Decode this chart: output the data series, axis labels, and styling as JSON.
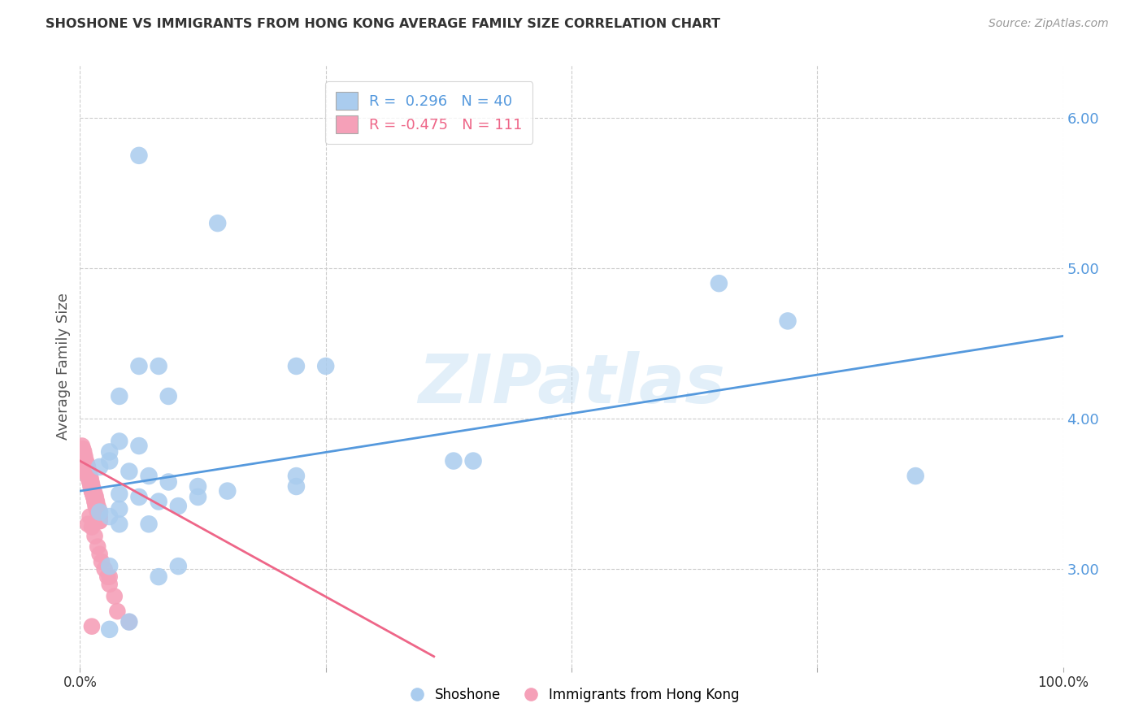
{
  "title": "SHOSHONE VS IMMIGRANTS FROM HONG KONG AVERAGE FAMILY SIZE CORRELATION CHART",
  "source": "Source: ZipAtlas.com",
  "ylabel": "Average Family Size",
  "xlim": [
    0,
    1.0
  ],
  "ylim": [
    2.35,
    6.35
  ],
  "yticks": [
    3.0,
    4.0,
    5.0,
    6.0
  ],
  "background_color": "#ffffff",
  "grid_color": "#cccccc",
  "shoshone_color": "#aaccee",
  "hk_color": "#f5a0b8",
  "hk_fill_color": "#f06080",
  "shoshone_line_color": "#5599dd",
  "hk_line_color": "#ee6688",
  "watermark": "ZIPatlas",
  "shoshone_x": [
    0.06,
    0.14,
    0.22,
    0.25,
    0.06,
    0.08,
    0.04,
    0.09,
    0.04,
    0.06,
    0.03,
    0.03,
    0.02,
    0.05,
    0.07,
    0.09,
    0.12,
    0.15,
    0.04,
    0.06,
    0.08,
    0.1,
    0.04,
    0.02,
    0.03,
    0.65,
    0.72,
    0.85,
    0.4,
    0.38,
    0.22,
    0.12,
    0.07,
    0.04,
    0.03,
    0.22,
    0.1,
    0.08,
    0.05,
    0.03
  ],
  "shoshone_y": [
    5.75,
    5.3,
    4.35,
    4.35,
    4.35,
    4.35,
    4.15,
    4.15,
    3.85,
    3.82,
    3.78,
    3.72,
    3.68,
    3.65,
    3.62,
    3.58,
    3.55,
    3.52,
    3.5,
    3.48,
    3.45,
    3.42,
    3.4,
    3.38,
    3.35,
    4.9,
    4.65,
    3.62,
    3.72,
    3.72,
    3.55,
    3.48,
    3.3,
    3.3,
    3.02,
    3.62,
    3.02,
    2.95,
    2.65,
    2.6
  ],
  "hk_x": [
    0.002,
    0.003,
    0.004,
    0.005,
    0.006,
    0.007,
    0.008,
    0.009,
    0.01,
    0.011,
    0.012,
    0.013,
    0.014,
    0.015,
    0.016,
    0.017,
    0.018,
    0.019,
    0.02,
    0.002,
    0.003,
    0.004,
    0.005,
    0.006,
    0.007,
    0.008,
    0.009,
    0.01,
    0.011,
    0.012,
    0.013,
    0.014,
    0.015,
    0.016,
    0.017,
    0.018,
    0.019,
    0.02,
    0.002,
    0.003,
    0.004,
    0.005,
    0.006,
    0.007,
    0.008,
    0.009,
    0.01,
    0.011,
    0.012,
    0.013,
    0.014,
    0.015,
    0.016,
    0.017,
    0.018,
    0.019,
    0.02,
    0.002,
    0.003,
    0.004,
    0.005,
    0.006,
    0.007,
    0.008,
    0.009,
    0.01,
    0.011,
    0.012,
    0.013,
    0.014,
    0.015,
    0.016,
    0.017,
    0.018,
    0.019,
    0.02,
    0.002,
    0.003,
    0.004,
    0.005,
    0.006,
    0.007,
    0.008,
    0.009,
    0.01,
    0.011,
    0.012,
    0.013,
    0.014,
    0.015,
    0.016,
    0.017,
    0.018,
    0.019,
    0.02,
    0.01,
    0.012,
    0.015,
    0.018,
    0.02,
    0.022,
    0.025,
    0.028,
    0.03,
    0.03,
    0.035,
    0.038,
    0.05,
    0.008,
    0.012
  ],
  "hk_y": [
    3.78,
    3.75,
    3.72,
    3.7,
    3.68,
    3.65,
    3.62,
    3.6,
    3.58,
    3.55,
    3.52,
    3.5,
    3.48,
    3.45,
    3.42,
    3.4,
    3.38,
    3.35,
    3.32,
    3.78,
    3.76,
    3.74,
    3.72,
    3.7,
    3.67,
    3.64,
    3.62,
    3.6,
    3.57,
    3.54,
    3.52,
    3.5,
    3.48,
    3.45,
    3.42,
    3.4,
    3.38,
    3.35,
    3.76,
    3.74,
    3.72,
    3.7,
    3.67,
    3.64,
    3.62,
    3.6,
    3.58,
    3.55,
    3.52,
    3.5,
    3.48,
    3.45,
    3.42,
    3.4,
    3.38,
    3.35,
    3.32,
    3.8,
    3.78,
    3.75,
    3.72,
    3.7,
    3.68,
    3.65,
    3.62,
    3.6,
    3.57,
    3.54,
    3.52,
    3.5,
    3.48,
    3.45,
    3.42,
    3.4,
    3.38,
    3.35,
    3.82,
    3.8,
    3.78,
    3.75,
    3.72,
    3.7,
    3.68,
    3.65,
    3.62,
    3.6,
    3.57,
    3.54,
    3.52,
    3.5,
    3.48,
    3.45,
    3.42,
    3.4,
    3.38,
    3.35,
    3.28,
    3.22,
    3.15,
    3.1,
    3.05,
    3.0,
    2.95,
    2.9,
    2.95,
    2.82,
    2.72,
    2.65,
    3.3,
    2.62
  ],
  "sh_line_x": [
    0.0,
    1.0
  ],
  "sh_line_y": [
    3.52,
    4.55
  ],
  "hk_line_x": [
    0.0,
    0.36
  ],
  "hk_line_y": [
    3.72,
    2.42
  ]
}
